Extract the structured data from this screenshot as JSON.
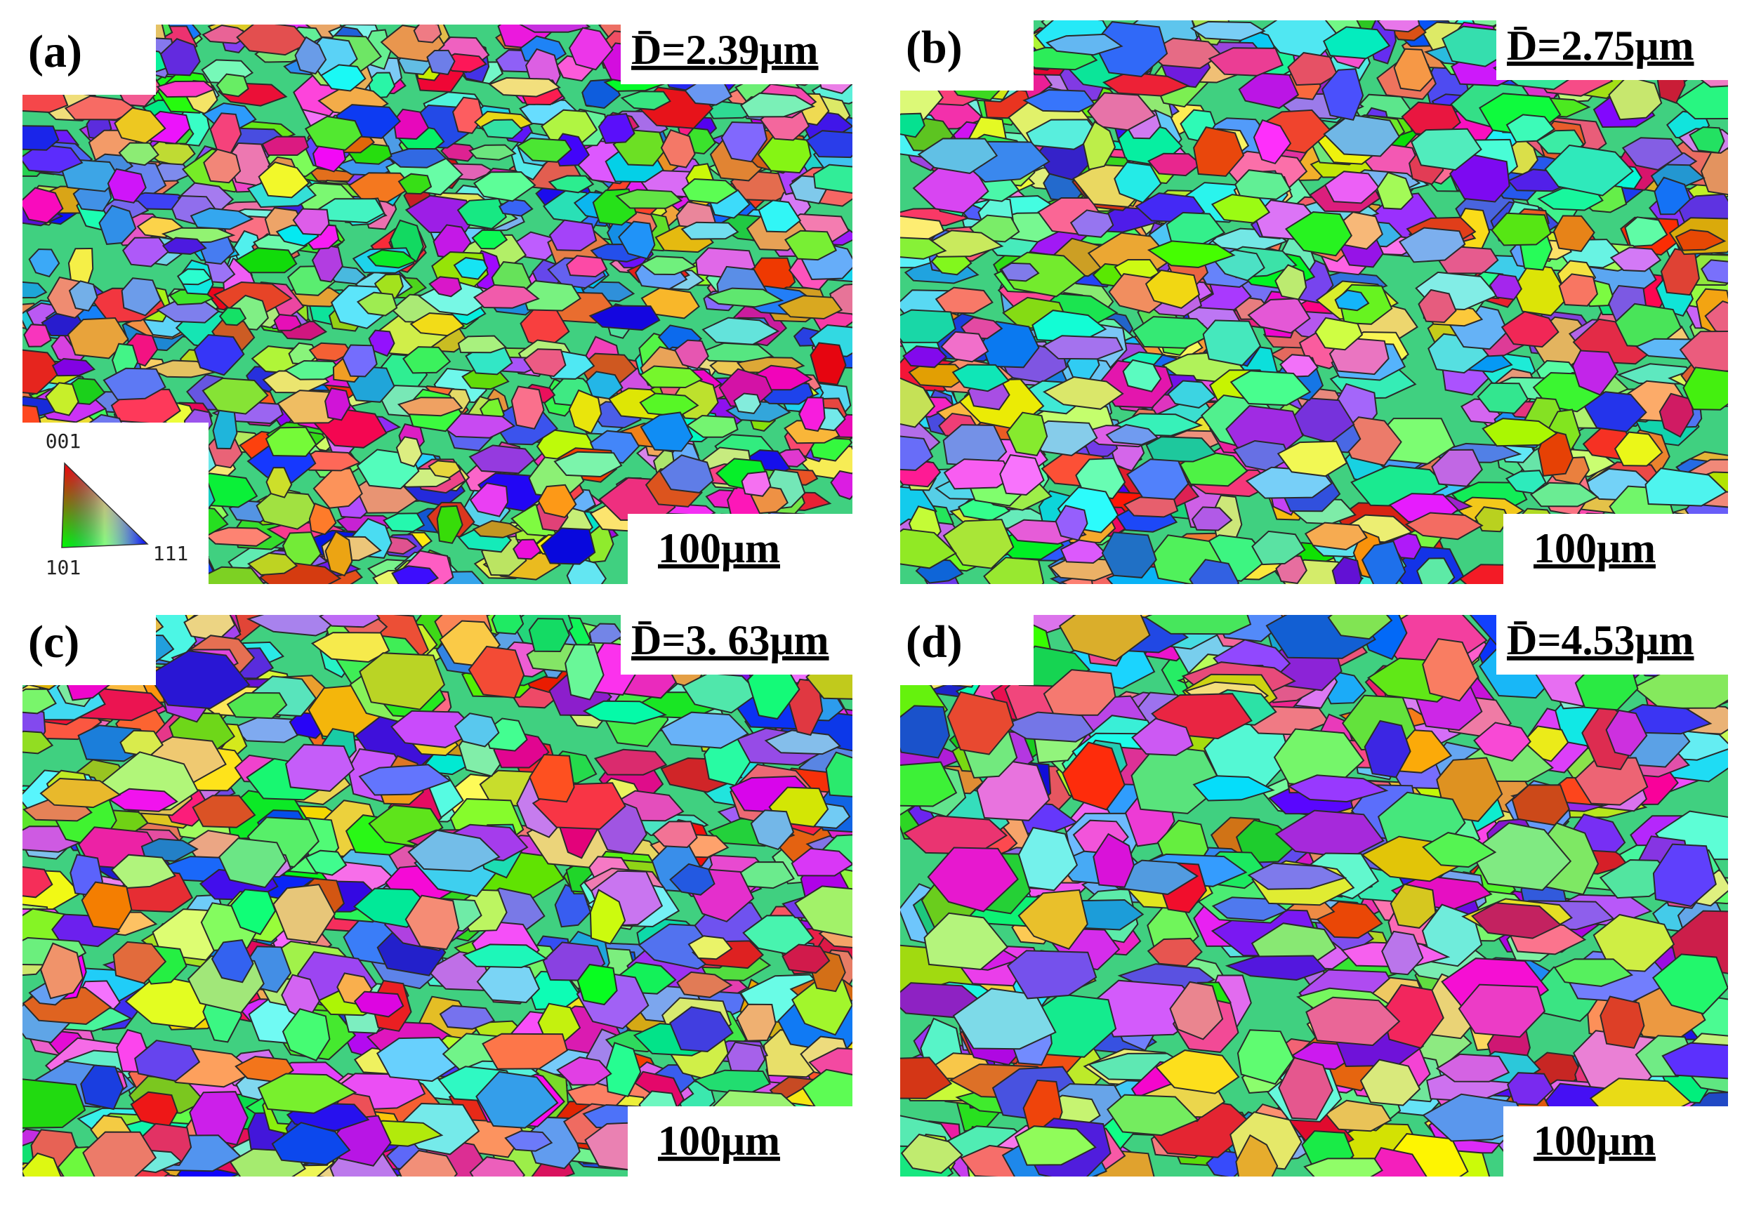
{
  "panels": [
    {
      "label": "(a)",
      "mean_size": "D̄=2.39μm",
      "scale_bar": "100μm"
    },
    {
      "label": "(b)",
      "mean_size": "D̄=2.75μm",
      "scale_bar": "100μm"
    },
    {
      "label": "(c)",
      "mean_size": "D̄=3. 63μm",
      "scale_bar": "100μm"
    },
    {
      "label": "(d)",
      "mean_size": "D̄=4.53μm",
      "scale_bar": "100μm"
    }
  ],
  "legend": {
    "labels": [
      "001",
      "101",
      "111"
    ]
  }
}
